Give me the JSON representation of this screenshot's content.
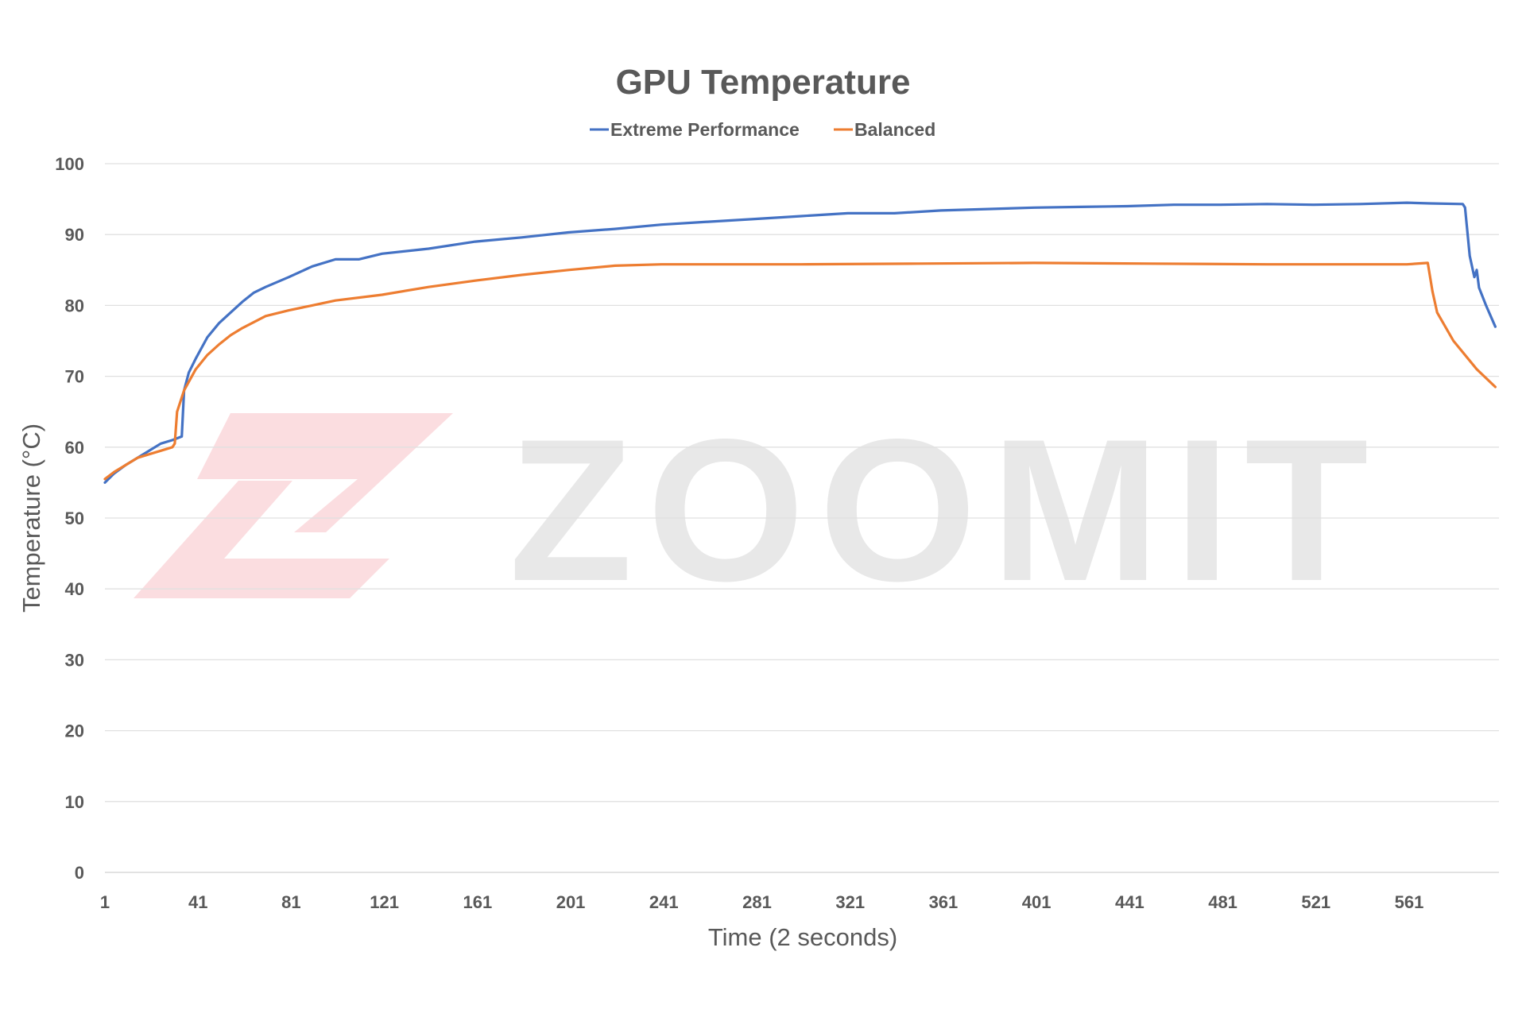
{
  "chart_data": {
    "type": "line",
    "title": "GPU Temperature",
    "xlabel": "Time (2 seconds)",
    "ylabel": "Temperature (°C)",
    "xlim": [
      1,
      598
    ],
    "ylim": [
      0,
      100
    ],
    "x_ticks": [
      "1",
      "41",
      "81",
      "121",
      "161",
      "201",
      "241",
      "281",
      "321",
      "361",
      "401",
      "441",
      "481",
      "521",
      "561"
    ],
    "y_ticks": [
      "0",
      "10",
      "20",
      "30",
      "40",
      "50",
      "60",
      "70",
      "80",
      "90",
      "100"
    ],
    "grid": true,
    "legend_position": "top-center",
    "series": [
      {
        "name": "Extreme Performance",
        "color": "#4472c4",
        "points": [
          [
            1,
            55
          ],
          [
            5,
            56.3
          ],
          [
            10,
            57.5
          ],
          [
            15,
            58.5
          ],
          [
            20,
            59.5
          ],
          [
            25,
            60.5
          ],
          [
            30,
            61
          ],
          [
            34,
            61.5
          ],
          [
            35,
            68
          ],
          [
            37,
            70.5
          ],
          [
            40,
            72.5
          ],
          [
            45,
            75.5
          ],
          [
            50,
            77.5
          ],
          [
            55,
            79
          ],
          [
            60,
            80.5
          ],
          [
            65,
            81.8
          ],
          [
            70,
            82.6
          ],
          [
            80,
            84
          ],
          [
            90,
            85.5
          ],
          [
            100,
            86.5
          ],
          [
            110,
            86.5
          ],
          [
            120,
            87.3
          ],
          [
            140,
            88
          ],
          [
            160,
            89
          ],
          [
            180,
            89.6
          ],
          [
            200,
            90.3
          ],
          [
            220,
            90.8
          ],
          [
            240,
            91.4
          ],
          [
            260,
            91.8
          ],
          [
            280,
            92.2
          ],
          [
            300,
            92.6
          ],
          [
            320,
            93
          ],
          [
            340,
            93
          ],
          [
            360,
            93.4
          ],
          [
            380,
            93.6
          ],
          [
            400,
            93.8
          ],
          [
            420,
            93.9
          ],
          [
            440,
            94
          ],
          [
            460,
            94.2
          ],
          [
            480,
            94.2
          ],
          [
            500,
            94.3
          ],
          [
            520,
            94.2
          ],
          [
            540,
            94.3
          ],
          [
            560,
            94.5
          ],
          [
            570,
            94.4
          ],
          [
            584,
            94.3
          ],
          [
            585,
            93.8
          ],
          [
            587,
            87
          ],
          [
            589,
            84
          ],
          [
            590,
            85
          ],
          [
            591,
            82.5
          ],
          [
            594,
            80
          ],
          [
            598,
            77
          ]
        ]
      },
      {
        "name": "Balanced",
        "color": "#ed7d31",
        "points": [
          [
            1,
            55.5
          ],
          [
            5,
            56.5
          ],
          [
            10,
            57.5
          ],
          [
            15,
            58.5
          ],
          [
            20,
            59
          ],
          [
            25,
            59.5
          ],
          [
            30,
            60
          ],
          [
            31,
            60.5
          ],
          [
            32,
            65
          ],
          [
            35,
            68
          ],
          [
            40,
            71
          ],
          [
            45,
            73
          ],
          [
            50,
            74.5
          ],
          [
            55,
            75.8
          ],
          [
            60,
            76.8
          ],
          [
            70,
            78.5
          ],
          [
            80,
            79.3
          ],
          [
            90,
            80
          ],
          [
            100,
            80.7
          ],
          [
            120,
            81.5
          ],
          [
            140,
            82.6
          ],
          [
            160,
            83.5
          ],
          [
            180,
            84.3
          ],
          [
            200,
            85
          ],
          [
            220,
            85.6
          ],
          [
            240,
            85.8
          ],
          [
            260,
            85.8
          ],
          [
            300,
            85.8
          ],
          [
            350,
            85.9
          ],
          [
            400,
            86
          ],
          [
            450,
            85.9
          ],
          [
            500,
            85.8
          ],
          [
            560,
            85.8
          ],
          [
            569,
            86
          ],
          [
            571,
            82
          ],
          [
            573,
            79
          ],
          [
            580,
            75
          ],
          [
            590,
            71
          ],
          [
            598,
            68.5
          ]
        ]
      }
    ]
  },
  "watermark": {
    "text": "ZOOMIT"
  }
}
